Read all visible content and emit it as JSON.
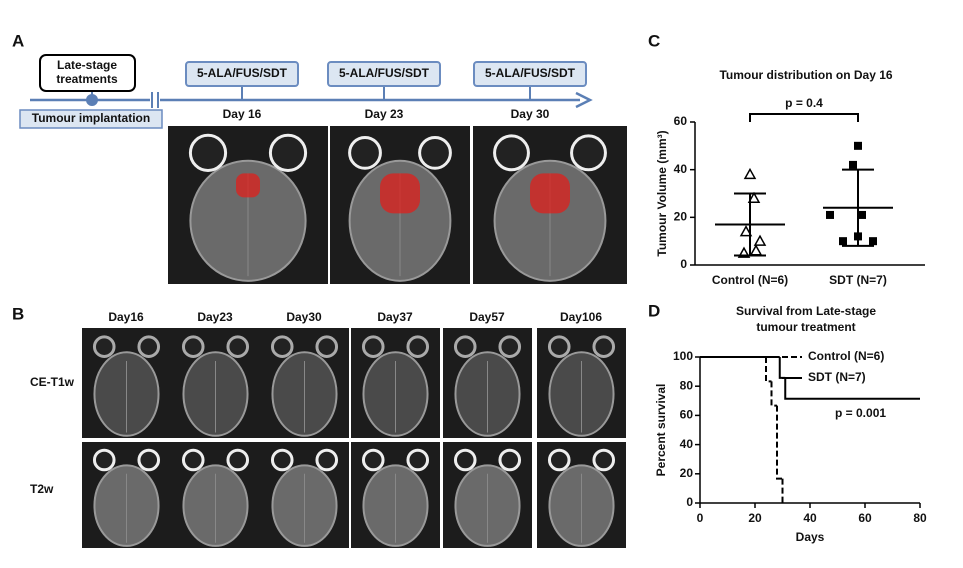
{
  "panel_a": {
    "label": "A",
    "event_box": [
      "Late-stage",
      "treatments"
    ],
    "baseline_label": "Tumour implantation",
    "treatments": [
      {
        "box": "5-ALA/FUS/SDT",
        "day": "Day 16"
      },
      {
        "box": "5-ALA/FUS/SDT",
        "day": "Day 23"
      },
      {
        "box": "5-ALA/FUS/SDT",
        "day": "Day 30"
      }
    ]
  },
  "panel_b": {
    "label": "B",
    "columns": [
      "Day16",
      "Day23",
      "Day30",
      "Day37",
      "Day57",
      "Day106"
    ],
    "rows": [
      "CE-T1w",
      "T2w"
    ]
  },
  "chart_data": [
    {
      "type": "scatter",
      "label": "C",
      "title": "Tumour distribution on Day 16",
      "ylabel": "Tumour Volume (mm³)",
      "categories": [
        "Control (N=6)",
        "SDT (N=7)"
      ],
      "series": [
        {
          "marker": "triangle",
          "color": "#000000",
          "values": [
            38,
            28,
            14,
            10,
            6,
            5
          ],
          "mean": 17,
          "sd": 13
        },
        {
          "marker": "square",
          "color": "#000000",
          "values": [
            50,
            42,
            21,
            21,
            12,
            10,
            10
          ],
          "mean": 24,
          "sd": 16
        }
      ],
      "annotation": "p = 0.4",
      "ylim": [
        0,
        60
      ],
      "yticks": [
        0,
        20,
        40,
        60
      ]
    },
    {
      "type": "line",
      "label": "D",
      "title": [
        "Survival from Late-stage",
        "tumour treatment"
      ],
      "xlabel": "Days",
      "ylabel": "Percent survival",
      "series": [
        {
          "name": "Control (N=6)",
          "color": "#000000",
          "dashed": true,
          "x": [
            0,
            24,
            26,
            28,
            30
          ],
          "values": [
            100,
            83.3,
            66.7,
            16.7,
            0
          ]
        },
        {
          "name": "SDT (N=7)",
          "color": "#000000",
          "dashed": false,
          "x": [
            0,
            29,
            31,
            80
          ],
          "values": [
            100,
            85.7,
            71.4,
            71.4
          ]
        }
      ],
      "annotation": "p = 0.001",
      "legend": "upper right",
      "xlim": [
        0,
        80
      ],
      "xticks": [
        0,
        20,
        40,
        60,
        80
      ],
      "ylim": [
        0,
        100
      ],
      "yticks": [
        0,
        20,
        40,
        60,
        80,
        100
      ]
    }
  ]
}
